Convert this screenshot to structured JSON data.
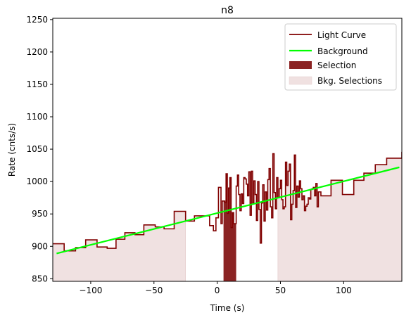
{
  "chart_data": {
    "type": "line",
    "title": "n8",
    "xlabel": "Time (s)",
    "ylabel": "Rate (cnts/s)",
    "xlim": [
      -130,
      146
    ],
    "ylim": [
      846,
      1252
    ],
    "xticks": [
      -100,
      -50,
      0,
      50,
      100
    ],
    "xtick_labels": [
      "−100",
      "−50",
      "0",
      "50",
      "100"
    ],
    "yticks": [
      850,
      900,
      950,
      1000,
      1050,
      1100,
      1150,
      1200,
      1250
    ],
    "grid": false,
    "legend_position": "top-right",
    "colors": {
      "light_curve": "#800000",
      "background": "#00ff00",
      "selection": "#8b2323",
      "bkg_selection": "#f0e1e1"
    },
    "series": [
      {
        "name": "Light Curve",
        "kind": "step",
        "x": [
          -130,
          -121,
          -112,
          -104,
          -95,
          -87,
          -80,
          -73,
          -65,
          -58,
          -49,
          -42,
          -34,
          -25,
          -18,
          -10,
          -6,
          -3,
          -1,
          1,
          3,
          4,
          6,
          7,
          8,
          9,
          10,
          11,
          12,
          13,
          14,
          15,
          16,
          17,
          18,
          19,
          20,
          21,
          22,
          23,
          24,
          25,
          26,
          27,
          28,
          29,
          30,
          31,
          32,
          33,
          34,
          35,
          36,
          37,
          38,
          39,
          40,
          41,
          42,
          43,
          44,
          45,
          46,
          47,
          48,
          49,
          50,
          51,
          52,
          53,
          54,
          55,
          56,
          57,
          58,
          59,
          60,
          61,
          62,
          63,
          64,
          65,
          66,
          67,
          68,
          69,
          70,
          71,
          72,
          73,
          74,
          75,
          76,
          77,
          78,
          79,
          80,
          82,
          90,
          99,
          108,
          116,
          125,
          134,
          146
        ],
        "y": [
          904,
          893,
          898,
          910,
          899,
          897,
          911,
          921,
          918,
          933,
          930,
          927,
          954,
          939,
          947,
          947,
          932,
          924,
          944,
          991,
          935,
          970,
          968,
          1012,
          951,
          990,
          1006,
          929,
          952,
          935,
          935,
          993,
          1010,
          980,
          955,
          981,
          966,
          1006,
          1004,
          996,
          978,
          1015,
          948,
          1016,
          967,
          1001,
          980,
          940,
          1000,
          957,
          905,
          967,
          995,
          939,
          984,
          956,
          1003,
          1020,
          961,
          944,
          1043,
          983,
          958,
          1006,
          975,
          989,
          1002,
          972,
          958,
          961,
          1030,
          994,
          1016,
          1027,
          941,
          965,
          986,
          1041,
          960,
          993,
          976,
          1001,
          989,
          972,
          978,
          955,
          962,
          965,
          975,
          973,
          988,
          989,
          991,
          978,
          997,
          961,
          984,
          978,
          1002,
          980,
          1002,
          1013,
          1026,
          1036,
          1045
        ]
      },
      {
        "name": "Background",
        "kind": "line",
        "x": [
          -127,
          144
        ],
        "y": [
          889,
          1022
        ]
      }
    ],
    "selections": {
      "name": "Selection",
      "ranges": [
        [
          5,
          15
        ]
      ]
    },
    "bkg_selections": {
      "name": "Bkg. Selections",
      "ranges": [
        [
          -130,
          -25
        ],
        [
          48,
          146
        ]
      ]
    }
  }
}
